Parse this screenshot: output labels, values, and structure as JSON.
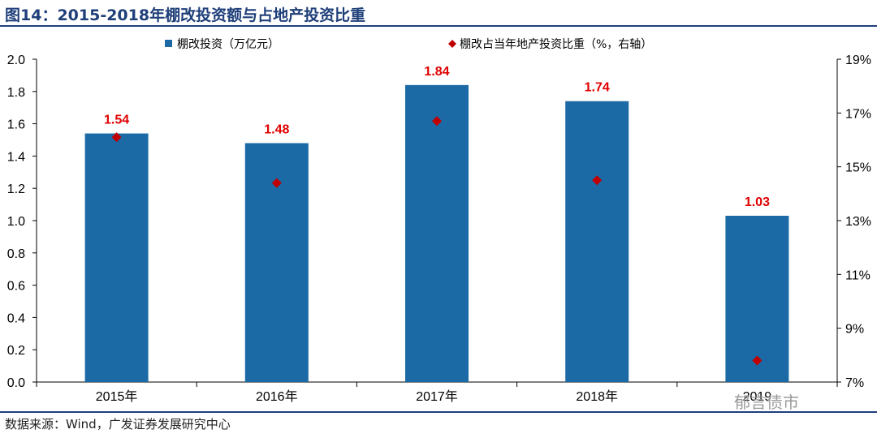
{
  "header": {
    "title": "图14：2015-2018年棚改投资额与占地产投资比重"
  },
  "footer": {
    "source": "数据来源：Wind，广发证券发展研究中心",
    "watermark": "郁言债市"
  },
  "chart_data": {
    "type": "bar",
    "categories": [
      "2015年",
      "2016年",
      "2017年",
      "2018年",
      "2019"
    ],
    "series": [
      {
        "name": "棚改投资（万亿元）",
        "type": "bar",
        "axis": "left",
        "values": [
          1.54,
          1.48,
          1.84,
          1.74,
          1.03
        ],
        "data_labels": [
          "1.54",
          "1.48",
          "1.84",
          "1.74",
          "1.03"
        ],
        "color": "#1b6aa5"
      },
      {
        "name": "棚改占当年地产投资比重（%，右轴）",
        "type": "scatter",
        "axis": "right",
        "values": [
          16.1,
          14.4,
          16.7,
          14.5,
          7.8
        ],
        "color": "#c00000"
      }
    ],
    "y_left": {
      "min": 0,
      "max": 2.0,
      "ticks": [
        "0.0",
        "0.2",
        "0.4",
        "0.6",
        "0.8",
        "1.0",
        "1.2",
        "1.4",
        "1.6",
        "1.8",
        "2.0"
      ]
    },
    "y_right": {
      "min": 7,
      "max": 19,
      "ticks": [
        "7%",
        "9%",
        "11%",
        "13%",
        "15%",
        "17%",
        "19%"
      ]
    },
    "legend_position": "top",
    "grid": false
  }
}
